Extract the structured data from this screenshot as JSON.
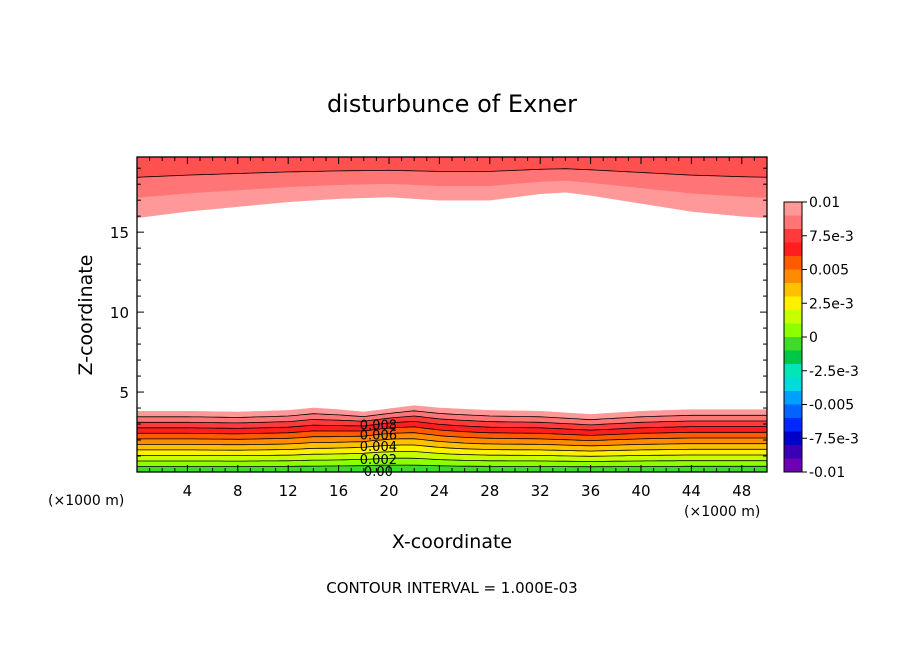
{
  "chart_data": {
    "type": "contour",
    "title": "disturbunce of Exner",
    "xlabel": "X-coordinate",
    "ylabel": "Z-coordinate",
    "x_unit_left": "(×1000 m)",
    "x_unit_right": "(×1000 m)",
    "footer": "CONTOUR INTERVAL = 1.000E-03",
    "xlim": [
      0,
      50
    ],
    "ylim": [
      0,
      19.7
    ],
    "x_ticks": [
      "4",
      "8",
      "12",
      "16",
      "20",
      "24",
      "28",
      "32",
      "36",
      "40",
      "44",
      "48"
    ],
    "y_ticks": [
      "5",
      "10",
      "15"
    ],
    "contour_interval": 0.001,
    "contour_labels": [
      "0.008",
      "0.006",
      "0.004",
      "0.002",
      "0.00"
    ],
    "colorbar": {
      "labels": [
        "0.01",
        "7.5e-3",
        "0.005",
        "2.5e-3",
        "0",
        "-2.5e-3",
        "-0.005",
        "-7.5e-3",
        "-0.01"
      ],
      "colors": [
        "#ff9999",
        "#ff7575",
        "#ff3a3a",
        "#ff1e1e",
        "#ff5a00",
        "#ff8c00",
        "#ffc000",
        "#fff000",
        "#c8ff00",
        "#8cff00",
        "#3cdc28",
        "#00c846",
        "#00e6b4",
        "#00dcdc",
        "#00a0ff",
        "#0064ff",
        "#0028ff",
        "#0000c8",
        "#3c00b4",
        "#6e00b4"
      ]
    },
    "lower_layer": {
      "x": [
        0,
        4,
        8,
        12,
        14,
        16,
        18,
        20,
        22,
        24,
        28,
        32,
        36,
        40,
        44,
        48,
        50
      ],
      "top_height": [
        3.8,
        3.8,
        3.75,
        3.85,
        4.0,
        3.9,
        3.75,
        3.95,
        4.15,
        4.0,
        3.85,
        3.8,
        3.6,
        3.8,
        3.9,
        3.9,
        3.9
      ]
    },
    "upper_layer": {
      "x": [
        0,
        4,
        8,
        12,
        16,
        20,
        24,
        28,
        32,
        34,
        36,
        40,
        44,
        48,
        50
      ],
      "bottom_height": [
        15.9,
        16.3,
        16.6,
        16.9,
        17.1,
        17.2,
        17.0,
        17.0,
        17.4,
        17.5,
        17.3,
        16.8,
        16.3,
        16.0,
        15.9
      ]
    }
  }
}
